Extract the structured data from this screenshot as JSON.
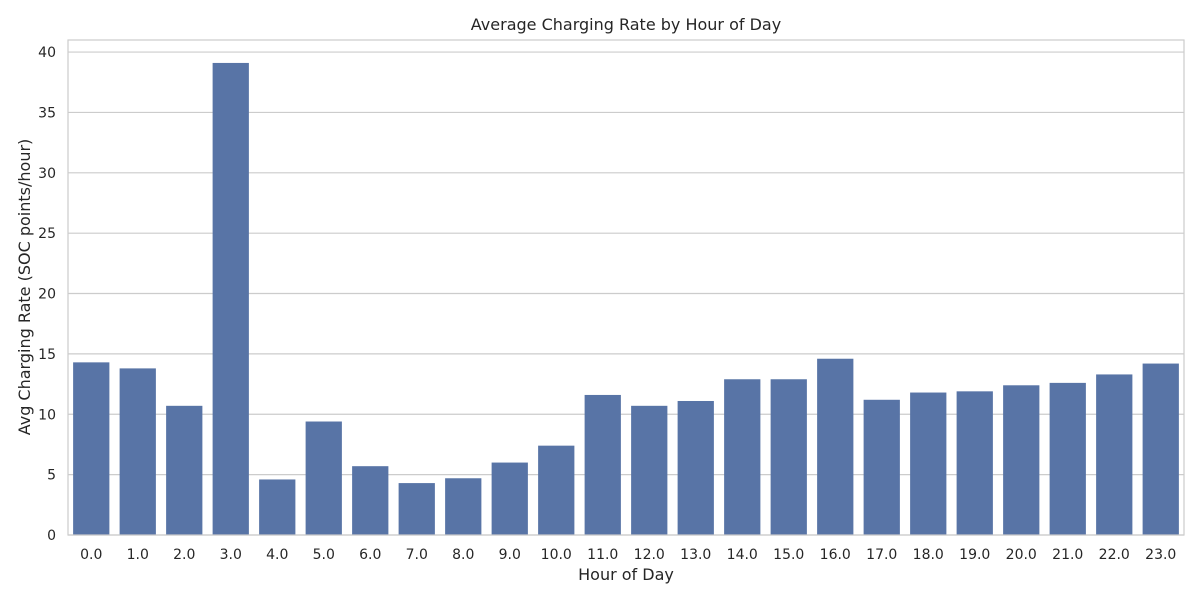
{
  "chart_data": {
    "type": "bar",
    "title": "Average Charging Rate by Hour of Day",
    "xlabel": "Hour of Day",
    "ylabel": "Avg Charging Rate (SOC points/hour)",
    "categories": [
      "0.0",
      "1.0",
      "2.0",
      "3.0",
      "4.0",
      "5.0",
      "6.0",
      "7.0",
      "8.0",
      "9.0",
      "10.0",
      "11.0",
      "12.0",
      "13.0",
      "14.0",
      "15.0",
      "16.0",
      "17.0",
      "18.0",
      "19.0",
      "20.0",
      "21.0",
      "22.0",
      "23.0"
    ],
    "values": [
      14.3,
      13.8,
      10.7,
      39.1,
      4.6,
      9.4,
      5.7,
      4.3,
      4.7,
      6.0,
      7.4,
      11.6,
      10.7,
      11.1,
      12.9,
      12.9,
      14.6,
      11.2,
      11.8,
      11.9,
      12.4,
      12.6,
      13.3,
      14.2
    ],
    "yticks": [
      0,
      5,
      10,
      15,
      20,
      25,
      30,
      35,
      40
    ],
    "ylim": [
      0,
      41
    ],
    "grid": true,
    "bar_color": "#5874a6",
    "grid_color": "#cccccc",
    "axes_edge_color": "#cccccc"
  }
}
